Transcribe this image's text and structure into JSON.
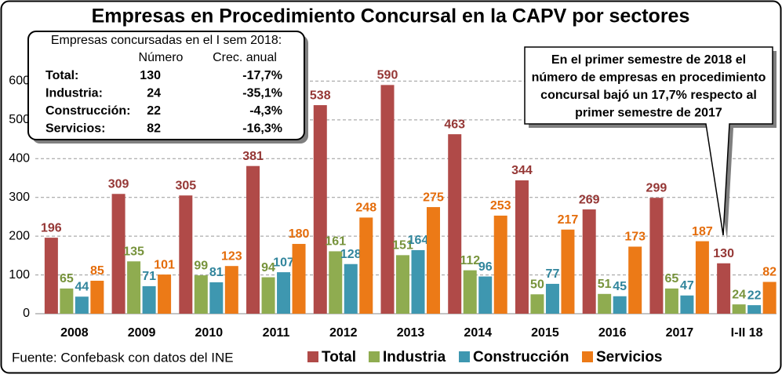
{
  "chart_data": {
    "type": "bar",
    "title": "Empresas en Procedimiento Concursal en la CAPV por sectores",
    "categories": [
      "2008",
      "2009",
      "2010",
      "2011",
      "2012",
      "2013",
      "2014",
      "2015",
      "2016",
      "2017",
      "I-II 18"
    ],
    "series": [
      {
        "name": "Total",
        "color": "#b04a48",
        "label_color": "#953735",
        "values": [
          196,
          309,
          305,
          381,
          538,
          590,
          463,
          344,
          269,
          299,
          130
        ]
      },
      {
        "name": "Industria",
        "color": "#8fac50",
        "label_color": "#77933c",
        "values": [
          65,
          135,
          99,
          94,
          161,
          151,
          112,
          50,
          51,
          65,
          24
        ]
      },
      {
        "name": "Construcción",
        "color": "#3e97b0",
        "label_color": "#31859c",
        "values": [
          44,
          71,
          81,
          107,
          128,
          164,
          96,
          77,
          45,
          47,
          22
        ]
      },
      {
        "name": "Servicios",
        "color": "#ec7a17",
        "label_color": "#e46c0a",
        "values": [
          85,
          101,
          123,
          180,
          248,
          275,
          253,
          217,
          173,
          187,
          82
        ]
      }
    ],
    "ylim": [
      0,
      700
    ],
    "yticks": [
      0,
      100,
      200,
      300,
      400,
      500,
      600
    ],
    "grid": true,
    "annotation": [
      "En el primer semestre de 2018 el",
      "número de empresas en procedimiento",
      "concursal bajó un 17,7% respecto al",
      "primer semestre de 2017"
    ],
    "source": "Fuente: Confebask con datos del INE"
  },
  "inset": {
    "title": "Empresas concursadas en el I sem 2018:",
    "headers": [
      "Número",
      "Crec. anual"
    ],
    "rows": [
      [
        "Total:",
        "130",
        "-17,7%"
      ],
      [
        "Industria:",
        "24",
        "-35,1%"
      ],
      [
        "Construcción:",
        "22",
        "-4,3%"
      ],
      [
        "Servicios:",
        "82",
        "-16,3%"
      ]
    ]
  }
}
